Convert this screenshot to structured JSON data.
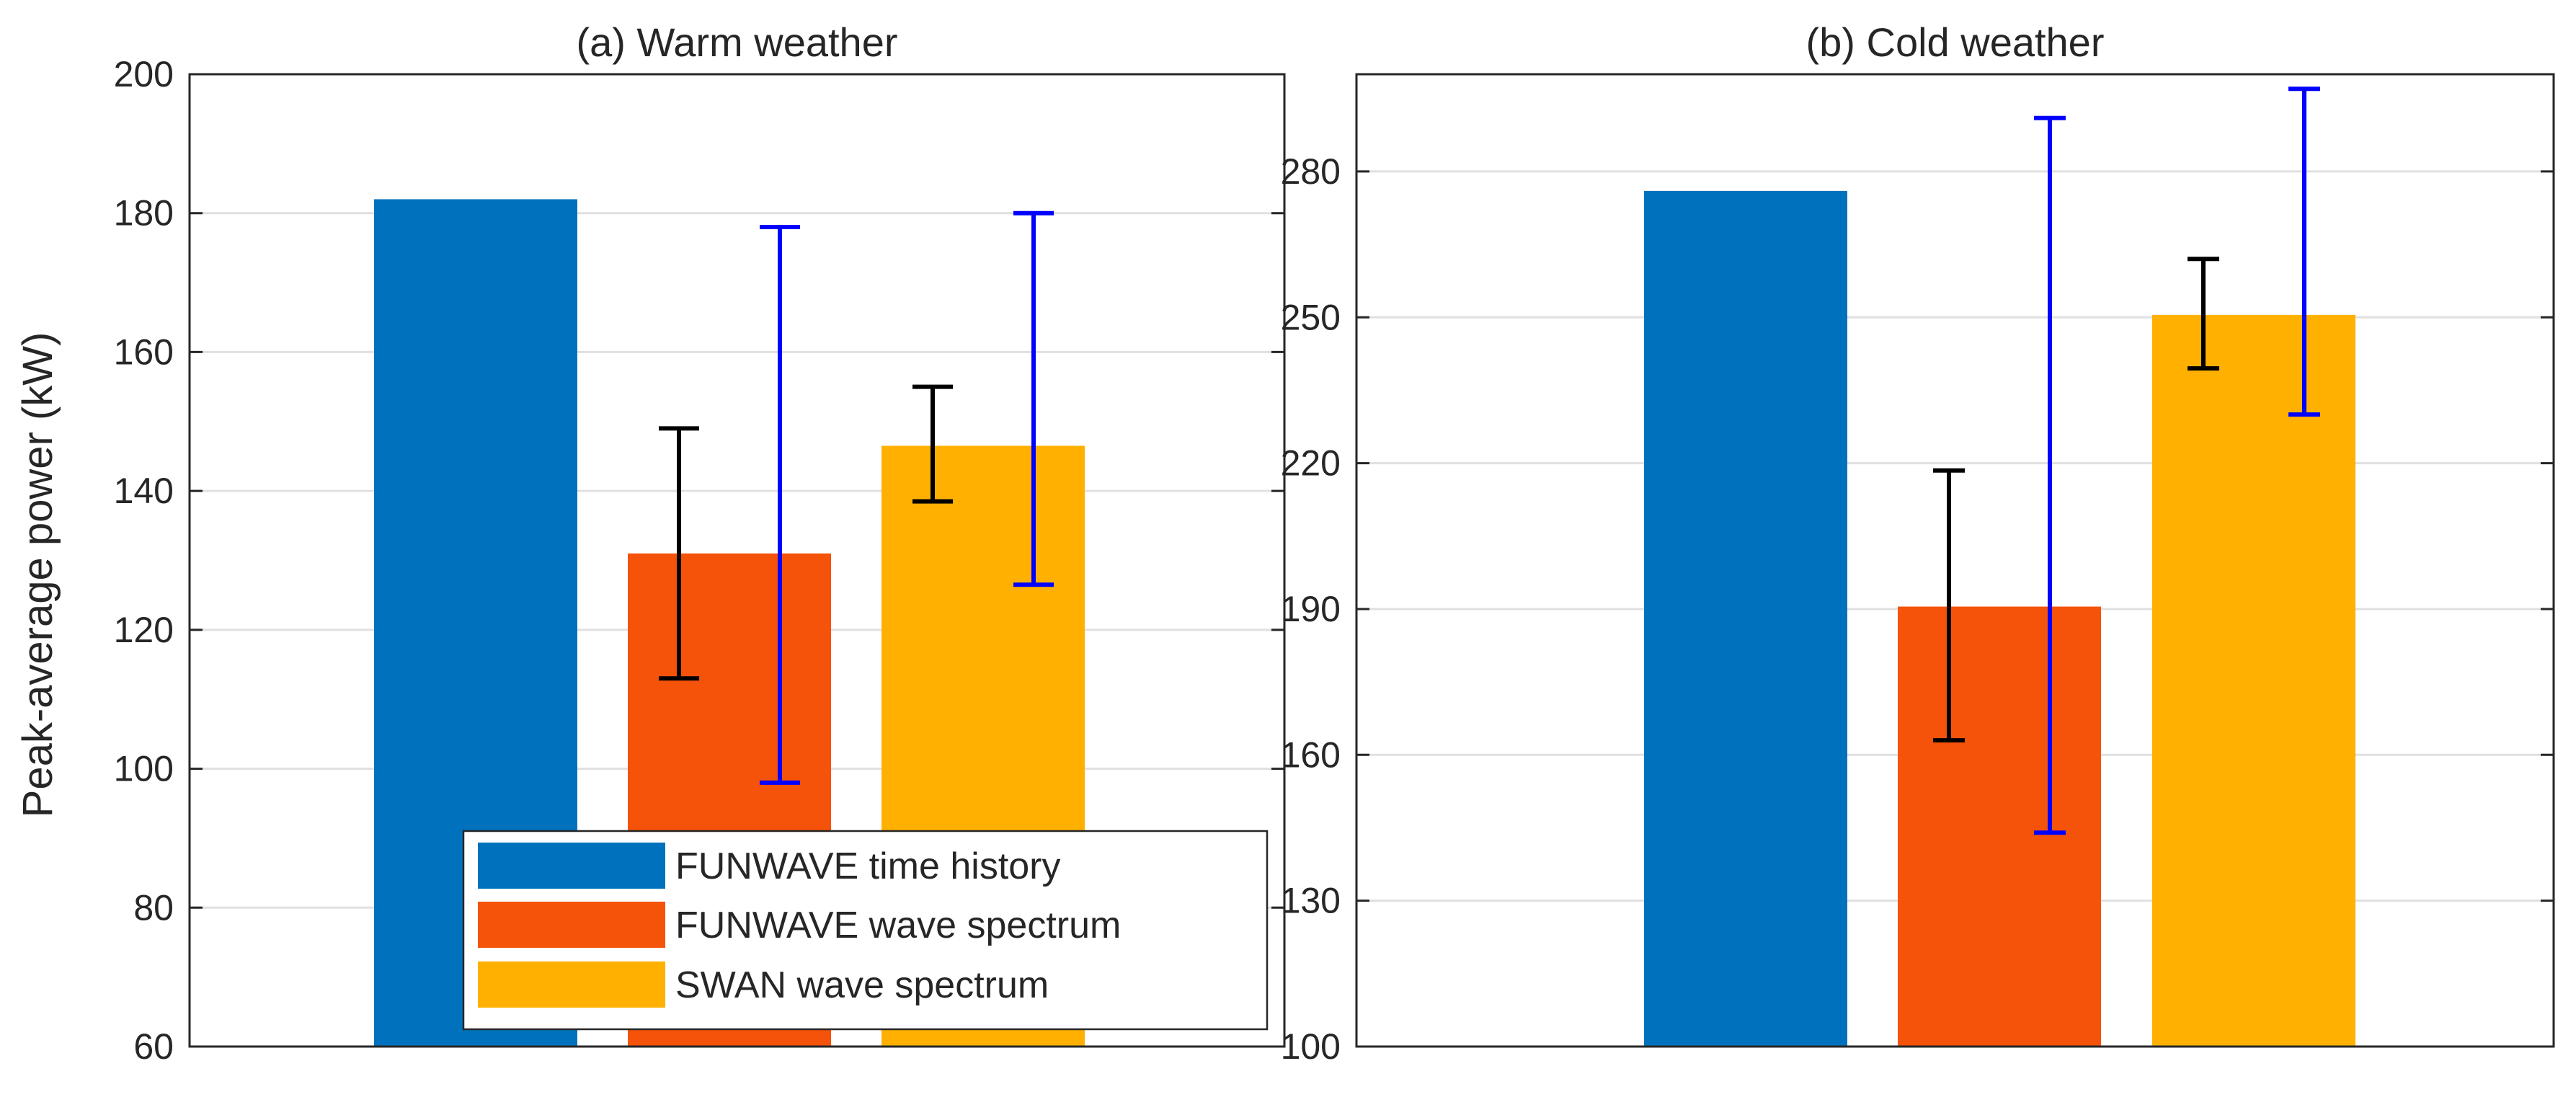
{
  "chart_data": [
    {
      "type": "bar",
      "title": "(a) Warm weather",
      "xlabel": "",
      "ylabel": "Peak-average power (kW)",
      "ylim": [
        60,
        200
      ],
      "yticks": [
        60,
        80,
        100,
        120,
        140,
        160,
        180,
        200
      ],
      "grid": true,
      "legend_position": "bottom-right",
      "series": [
        {
          "name": "FUNWAVE time history",
          "color": "#0072BD",
          "value": 182
        },
        {
          "name": "FUNWAVE wave spectrum",
          "color": "#F5520A",
          "value": 131,
          "error_bars": [
            {
              "color": "#000000",
              "low": 113,
              "high": 149
            },
            {
              "color": "#0000FF",
              "low": 98,
              "high": 178
            }
          ]
        },
        {
          "name": "SWAN wave spectrum",
          "color": "#FFB000",
          "value": 146.5,
          "error_bars": [
            {
              "color": "#000000",
              "low": 138.5,
              "high": 155
            },
            {
              "color": "#0000FF",
              "low": 126.5,
              "high": 180
            }
          ]
        }
      ]
    },
    {
      "type": "bar",
      "title": "(b) Cold weather",
      "xlabel": "",
      "ylabel": "",
      "ylim": [
        100,
        300
      ],
      "yticks": [
        100,
        130,
        160,
        190,
        220,
        250,
        280
      ],
      "grid": true,
      "series": [
        {
          "name": "FUNWAVE time history",
          "color": "#0072BD",
          "value": 276
        },
        {
          "name": "FUNWAVE wave spectrum",
          "color": "#F5520A",
          "value": 190.5,
          "error_bars": [
            {
              "color": "#000000",
              "low": 163,
              "high": 218.5
            },
            {
              "color": "#0000FF",
              "low": 144,
              "high": 291
            }
          ]
        },
        {
          "name": "SWAN wave spectrum",
          "color": "#FFB000",
          "value": 250.5,
          "error_bars": [
            {
              "color": "#000000",
              "low": 239.5,
              "high": 262
            },
            {
              "color": "#0000FF",
              "low": 230,
              "high": 297
            }
          ]
        }
      ]
    }
  ]
}
